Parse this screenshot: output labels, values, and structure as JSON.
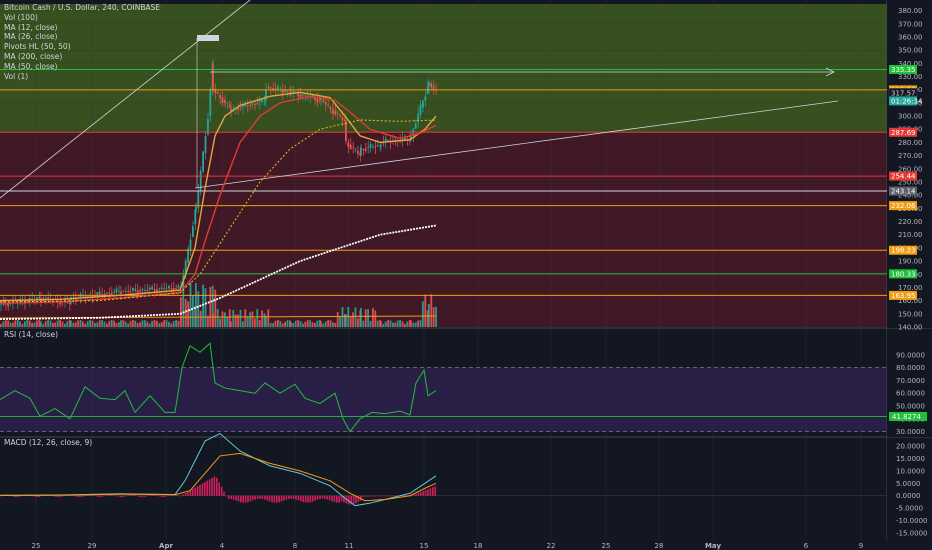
{
  "chart_data": {
    "type": "candlestick",
    "header": {
      "title": "Bitcoin Cash / U.S. Dollar, 240, COINBASE",
      "indicators": [
        "Vol (100)",
        "MA (12, close)",
        "MA (26, close)",
        "Pivots HL (50, 50)",
        "MA (200, close)",
        "MA (50, close)",
        "Vol (1)"
      ]
    },
    "price_axis": {
      "ticks": [
        "380.00",
        "370.00",
        "360.00",
        "350.00",
        "340.00",
        "330.00",
        "320.00",
        "310.00",
        "300.00",
        "290.00",
        "280.00",
        "270.00",
        "260.00",
        "250.00",
        "240.00",
        "230.00",
        "220.00",
        "210.00",
        "200.00",
        "190.00",
        "180.00",
        "170.00",
        "160.00",
        "150.00",
        "140.00"
      ],
      "ylim": [
        140,
        385
      ]
    },
    "price_labels": [
      {
        "text": "335.35",
        "value": 335.35,
        "color": "#21c03a"
      },
      {
        "text": "319.86",
        "value": 319.86,
        "color": "#f39c12"
      },
      {
        "text": "317.57",
        "value": 317.57,
        "color": "#131722"
      },
      {
        "text": "01:26:34",
        "value": 311.5,
        "color": "#26a69a"
      },
      {
        "text": "287.69",
        "value": 287.69,
        "color": "#e53935"
      },
      {
        "text": "254.44",
        "value": 254.44,
        "color": "#e53935"
      },
      {
        "text": "243.14",
        "value": 243.14,
        "color": "#5d606b"
      },
      {
        "text": "232.06",
        "value": 232.06,
        "color": "#f39c12"
      },
      {
        "text": "198.23",
        "value": 198.23,
        "color": "#f39c12"
      },
      {
        "text": "180.33",
        "value": 180.33,
        "color": "#21c03a"
      },
      {
        "text": "163.95",
        "value": 163.95,
        "color": "#f39c12"
      }
    ],
    "horizontal_levels": [
      {
        "value": 335.35,
        "color": "#21c03a"
      },
      {
        "value": 319.86,
        "color": "#f39c12"
      },
      {
        "value": 287.69,
        "color": "#e53935"
      },
      {
        "value": 254.44,
        "color": "#e53935"
      },
      {
        "value": 243.14,
        "color": "#d1d4dc"
      },
      {
        "value": 232.06,
        "color": "#f39c12"
      },
      {
        "value": 198.23,
        "color": "#f39c12"
      },
      {
        "value": 180.33,
        "color": "#21c03a"
      },
      {
        "value": 163.95,
        "color": "#f39c12"
      }
    ],
    "zones": [
      {
        "from": 287.69,
        "to": 385,
        "color": "#3d5a1e"
      },
      {
        "from": 140,
        "to": 287.69,
        "color": "#4a1a27"
      }
    ],
    "x_axis": {
      "ticks": [
        "25",
        "29",
        "Apr",
        "4",
        "8",
        "11",
        "15",
        "18",
        "22",
        "25",
        "28",
        "May",
        "6",
        "9"
      ]
    },
    "ma_lines": [
      {
        "name": "MA (12, close)",
        "color": "#e8a33d"
      },
      {
        "name": "MA (26, close)",
        "color": "#e53935"
      },
      {
        "name": "MA (50, close)",
        "color": "#f0c419"
      },
      {
        "name": "MA (200, close)",
        "color": "#ffffff"
      }
    ],
    "rsi": {
      "label": "RSI (14, close)",
      "ticks": [
        "90.0000",
        "80.0000",
        "70.0000",
        "60.0000",
        "50.0000",
        "40.0000",
        "30.0000"
      ],
      "ylim": [
        25,
        100
      ],
      "bands": [
        80,
        30
      ],
      "level": 41.8274,
      "level_label": "41.8274",
      "level_color": "#21c03a"
    },
    "macd": {
      "label": "MACD (12, 26, close, 9)",
      "ticks": [
        "20.0000",
        "15.0000",
        "10.0000",
        "5.0000",
        "0.0000",
        "-5.0000",
        "-10.0000",
        "-15.0000"
      ],
      "ylim": [
        -17,
        22
      ]
    },
    "colors": {
      "background": "#131722",
      "up": "#26a69a",
      "down": "#ef5350",
      "grid": "#2a2e39"
    }
  }
}
